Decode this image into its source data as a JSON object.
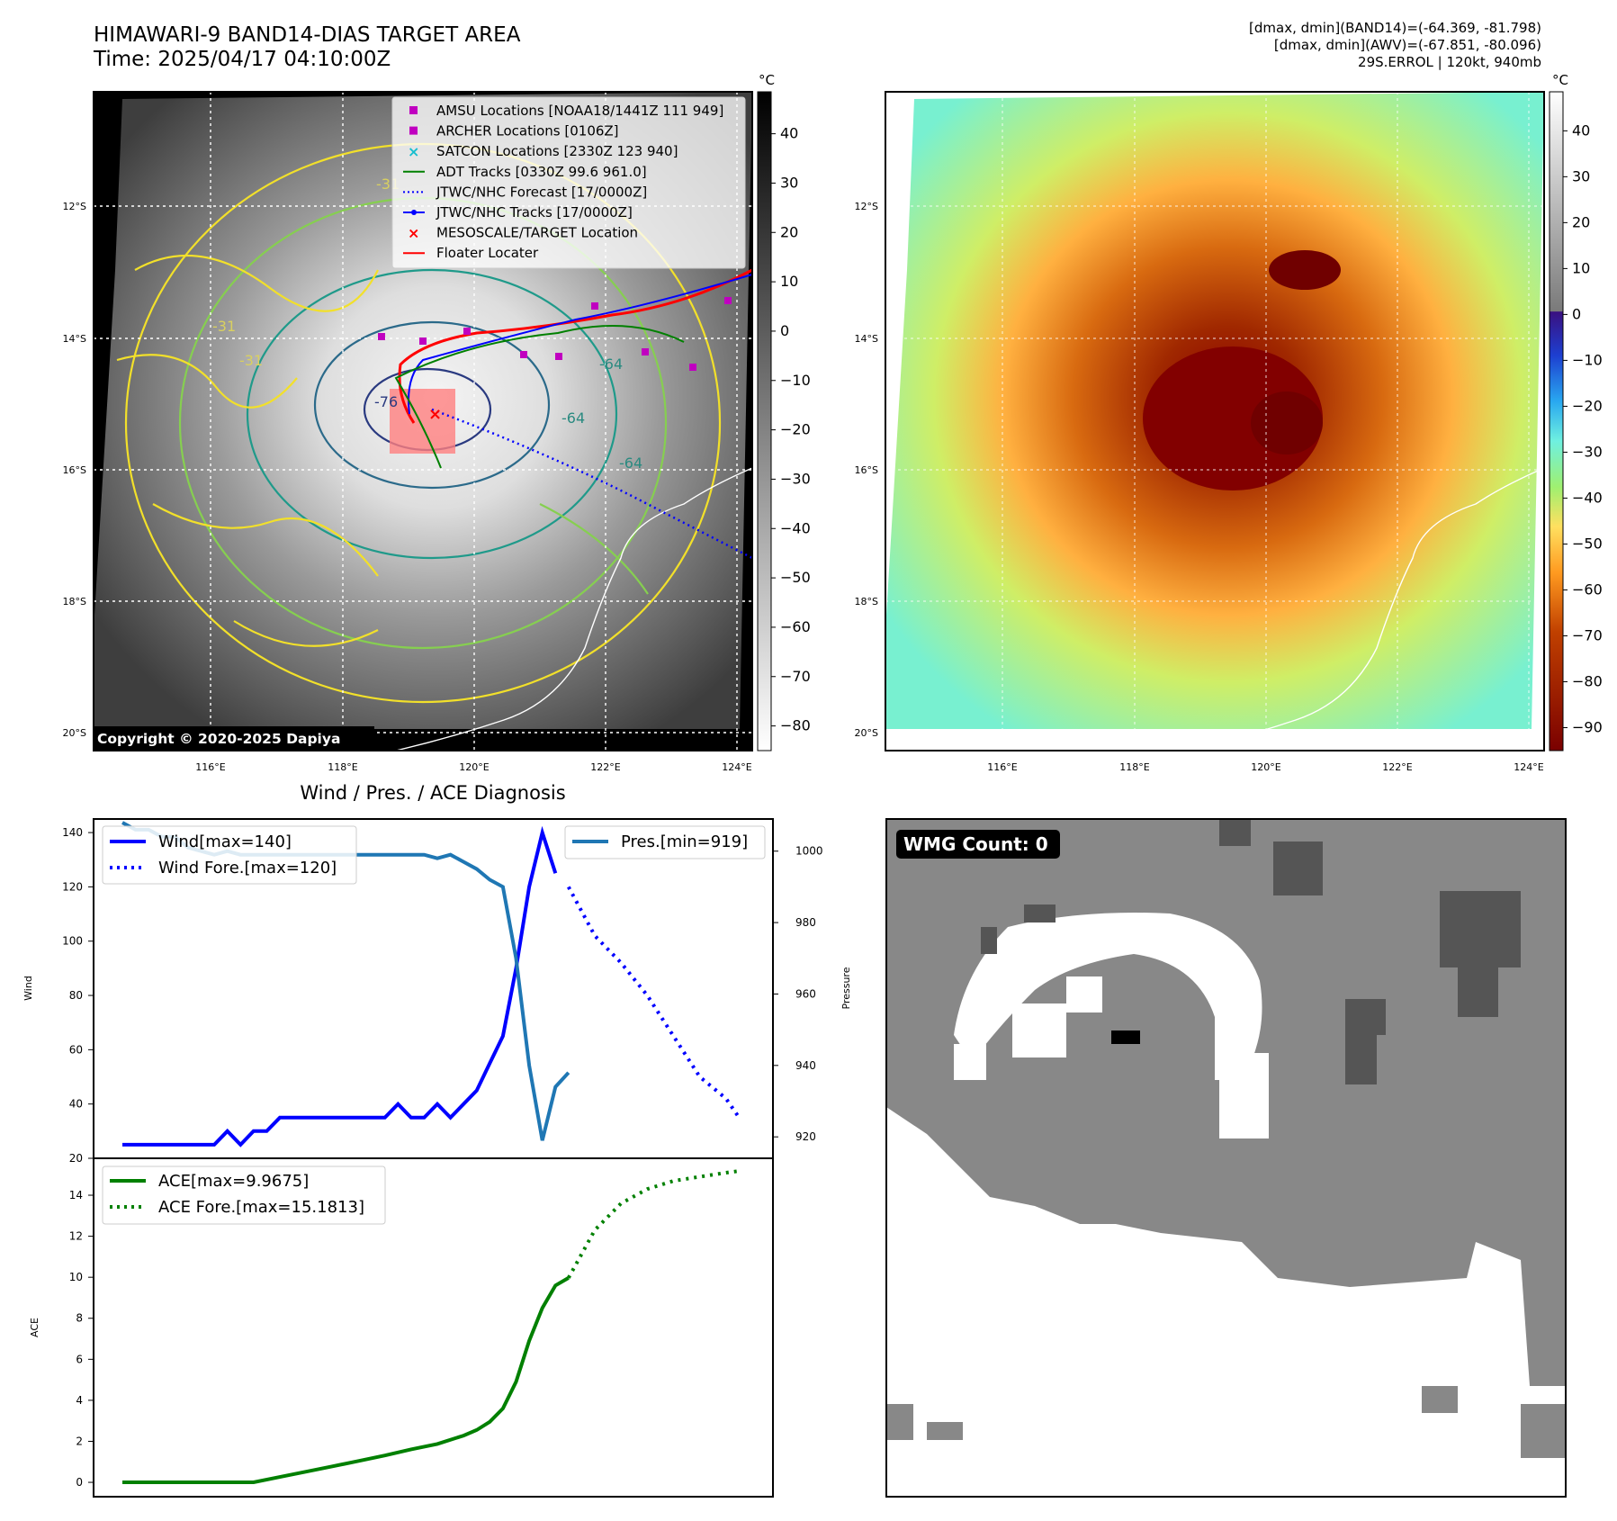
{
  "header": {
    "title_line1": "HIMAWARI-9 BAND14-DIAS TARGET AREA",
    "title_line2": "Time: 2025/04/17 04:10:00Z",
    "dmax_band14": "[dmax, dmin](BAND14)=(-64.369, -81.798)",
    "dmax_awv": "[dmax, dmin](AWV)=(-67.851, -80.096)",
    "storm_info": "29S.ERROL | 120kt, 940mb"
  },
  "map_panels": {
    "lat_labels": [
      "12°S",
      "14°S",
      "16°S",
      "18°S",
      "20°S"
    ],
    "lon_labels": [
      "116°E",
      "118°E",
      "120°E",
      "122°E",
      "124°E"
    ],
    "copyright": "Copyright © 2020-2025 Dapiya",
    "contour_labels": [
      "-31",
      "-31",
      "-31",
      "-64",
      "-64",
      "-64",
      "-76"
    ],
    "gray_colorbar": {
      "unit": "°C",
      "ticks": [
        "40",
        "30",
        "20",
        "10",
        "0",
        "−10",
        "−20",
        "−30",
        "−40",
        "−50",
        "−60",
        "−70",
        "−80"
      ]
    },
    "color_colorbar": {
      "unit": "°C",
      "ticks": [
        "40",
        "30",
        "20",
        "10",
        "0",
        "−10",
        "−20",
        "−30",
        "−40",
        "−50",
        "−60",
        "−70",
        "−80",
        "−90"
      ]
    },
    "legend": [
      {
        "label": "AMSU Locations [NOAA18/1441Z 111 949]",
        "color": "#c000c0",
        "kind": "square"
      },
      {
        "label": "ARCHER Locations [0106Z]",
        "color": "#c000c0",
        "kind": "square"
      },
      {
        "label": "SATCON Locations [2330Z 123 940]",
        "color": "#17becf",
        "kind": "x"
      },
      {
        "label": "ADT Tracks [0330Z 99.6 961.0]",
        "color": "#008000",
        "kind": "line"
      },
      {
        "label": "JTWC/NHC Forecast [17/0000Z]",
        "color": "#0000ff",
        "kind": "dotted"
      },
      {
        "label": "JTWC/NHC Tracks [17/0000Z]",
        "color": "#0000ff",
        "kind": "linedot"
      },
      {
        "label": "MESOSCALE/TARGET Location",
        "color": "#ff0000",
        "kind": "xred"
      },
      {
        "label": "Floater Locater",
        "color": "#ff0000",
        "kind": "line"
      }
    ]
  },
  "diagnosis": {
    "title": "Wind / Pres. / ACE Diagnosis",
    "wind_ylabel": "Wind",
    "pres_ylabel": "Pressure",
    "ace_ylabel": "ACE",
    "legend_wind": "Wind[max=140]",
    "legend_wind_fore": "Wind Fore.[max=120]",
    "legend_pres": "Pres.[min=919]",
    "legend_ace": "ACE[max=9.9675]",
    "legend_ace_fore": "ACE Fore.[max=15.1813]",
    "wmg_count": "WMG Count: 0"
  },
  "chart_data": [
    {
      "type": "line",
      "title": "Wind / Pres. / ACE Diagnosis",
      "ylabel": "Wind",
      "ylim": [
        20,
        145
      ],
      "yticks": [
        20,
        40,
        60,
        80,
        100,
        120,
        140
      ],
      "xlim": [
        0,
        48
      ],
      "series": [
        {
          "name": "Wind[max=140]",
          "color": "#0000ff",
          "style": "solid",
          "x": [
            0,
            1,
            2,
            3,
            4,
            5,
            6,
            7,
            8,
            9,
            10,
            11,
            12,
            13,
            14,
            15,
            16,
            17,
            18,
            19,
            20,
            21,
            22,
            23,
            24,
            25,
            26,
            27,
            28,
            29,
            30,
            31,
            32,
            33
          ],
          "values": [
            25,
            25,
            25,
            25,
            25,
            25,
            25,
            25,
            30,
            25,
            30,
            30,
            35,
            35,
            35,
            35,
            35,
            35,
            35,
            35,
            35,
            40,
            35,
            35,
            40,
            35,
            40,
            45,
            55,
            65,
            90,
            120,
            140,
            125
          ]
        },
        {
          "name": "Wind Fore.[max=120]",
          "color": "#0000ff",
          "style": "dotted",
          "x": [
            34,
            36,
            38,
            40,
            42,
            44,
            46,
            47
          ],
          "values": [
            120,
            102,
            92,
            80,
            65,
            50,
            42,
            35
          ]
        }
      ]
    },
    {
      "type": "line",
      "ylabel": "Pressure",
      "ylim": [
        914,
        1009
      ],
      "yticks": [
        920,
        940,
        960,
        980,
        1000
      ],
      "xlim": [
        0,
        48
      ],
      "series": [
        {
          "name": "Pres.[min=919]",
          "color": "#1f77b4",
          "style": "solid",
          "x": [
            0,
            1,
            2,
            3,
            4,
            5,
            6,
            7,
            8,
            9,
            10,
            11,
            12,
            13,
            14,
            15,
            16,
            17,
            18,
            19,
            20,
            21,
            22,
            23,
            24,
            25,
            26,
            27,
            28,
            29,
            30,
            31,
            32,
            33,
            34
          ],
          "values": [
            1008,
            1006,
            1006,
            1004,
            1004,
            1001,
            1000,
            999,
            1000,
            999,
            999,
            999,
            999,
            999,
            999,
            999,
            999,
            999,
            999,
            999,
            999,
            999,
            999,
            999,
            998,
            999,
            997,
            995,
            992,
            990,
            970,
            940,
            919,
            934,
            938
          ]
        }
      ]
    },
    {
      "type": "line",
      "ylabel": "ACE",
      "ylim": [
        -0.7,
        15.8
      ],
      "yticks": [
        0,
        2,
        4,
        6,
        8,
        10,
        12,
        14
      ],
      "xlim": [
        0,
        48
      ],
      "series": [
        {
          "name": "ACE[max=9.9675]",
          "color": "#008000",
          "style": "solid",
          "x": [
            0,
            10,
            12,
            14,
            16,
            18,
            20,
            22,
            24,
            26,
            27,
            28,
            29,
            30,
            31,
            32,
            33,
            34
          ],
          "values": [
            0,
            0,
            0.26,
            0.52,
            0.78,
            1.04,
            1.31,
            1.61,
            1.87,
            2.28,
            2.55,
            2.95,
            3.6,
            4.9,
            6.9,
            8.5,
            9.6,
            9.97
          ]
        },
        {
          "name": "ACE Fore.[max=15.1813]",
          "color": "#008000",
          "style": "dotted",
          "x": [
            34,
            36,
            38,
            40,
            42,
            44,
            46,
            47
          ],
          "values": [
            9.97,
            12.3,
            13.6,
            14.3,
            14.7,
            14.9,
            15.1,
            15.18
          ]
        }
      ]
    }
  ]
}
